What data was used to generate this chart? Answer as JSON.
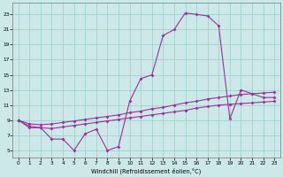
{
  "bg_color": "#cce8e8",
  "line_color": "#993399",
  "grid_color": "#99cccc",
  "xlabel": "Windchill (Refroidissement éolien,°C)",
  "ylabel_ticks": [
    5,
    7,
    9,
    11,
    13,
    15,
    17,
    19,
    21,
    23
  ],
  "xticks": [
    0,
    1,
    2,
    3,
    4,
    5,
    6,
    7,
    8,
    9,
    10,
    11,
    12,
    13,
    14,
    15,
    16,
    17,
    18,
    19,
    20,
    21,
    22,
    23
  ],
  "xlim": [
    -0.5,
    23.5
  ],
  "ylim": [
    4.0,
    24.5
  ],
  "line1_x": [
    0,
    1,
    2,
    3,
    4,
    5,
    6,
    7,
    8,
    9,
    10,
    11,
    12,
    13,
    14,
    15,
    16,
    17,
    18,
    19,
    20,
    21,
    22,
    23
  ],
  "line1_y": [
    9.0,
    8.0,
    8.0,
    6.5,
    6.5,
    5.0,
    7.2,
    7.8,
    5.0,
    5.5,
    11.5,
    14.5,
    15.0,
    20.2,
    21.0,
    23.2,
    23.0,
    22.8,
    21.5,
    9.2,
    13.0,
    12.5,
    12.0,
    12.0
  ],
  "line2_x": [
    0,
    1,
    2,
    3,
    4,
    5,
    6,
    7,
    8,
    9,
    10,
    11,
    12,
    13,
    14,
    15,
    16,
    17,
    18,
    19,
    20,
    21,
    22,
    23
  ],
  "line2_y": [
    9.0,
    8.5,
    8.4,
    8.5,
    8.7,
    8.9,
    9.1,
    9.3,
    9.5,
    9.7,
    10.0,
    10.2,
    10.5,
    10.7,
    11.0,
    11.3,
    11.5,
    11.8,
    12.0,
    12.2,
    12.4,
    12.5,
    12.6,
    12.7
  ],
  "line3_x": [
    0,
    1,
    2,
    3,
    4,
    5,
    6,
    7,
    8,
    9,
    10,
    11,
    12,
    13,
    14,
    15,
    16,
    17,
    18,
    19,
    20,
    21,
    22,
    23
  ],
  "line3_y": [
    9.0,
    8.2,
    8.0,
    7.9,
    8.1,
    8.3,
    8.5,
    8.7,
    8.9,
    9.1,
    9.3,
    9.5,
    9.7,
    9.9,
    10.1,
    10.3,
    10.6,
    10.8,
    11.0,
    11.1,
    11.2,
    11.3,
    11.4,
    11.5
  ]
}
